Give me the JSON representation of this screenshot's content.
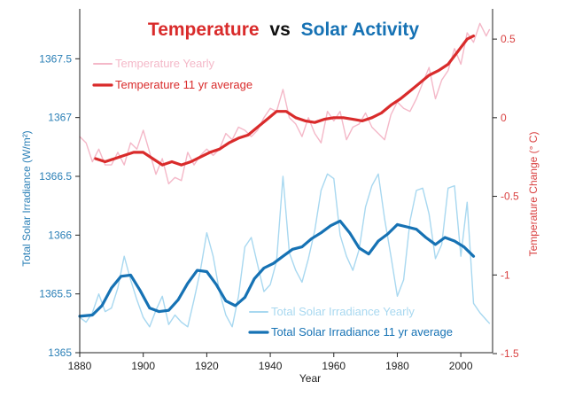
{
  "colors": {
    "temp": "#d92b2b",
    "temp_yearly": "#f4b8c8",
    "solar": "#1672b4",
    "solar_yearly": "#a8d8f0",
    "left_axis": "#2a7fb6",
    "right_axis": "#d94040",
    "axis_line": "#222222",
    "title_vs": "#111111"
  },
  "chart_data": {
    "type": "line",
    "title": {
      "part1": "Temperature",
      "part2": "vs",
      "part3": "Solar Activity"
    },
    "xlabel": "Year",
    "ylabel_left": "Total Solar Irradiance (W/m²)",
    "ylabel_right": "Temperature Change (° C)",
    "xlim": [
      1880,
      2010
    ],
    "ylim_left": [
      1365,
      1368
    ],
    "ylim_right": [
      -1.5,
      0.65
    ],
    "x_ticks": [
      1880,
      1900,
      1920,
      1940,
      1960,
      1980,
      2000
    ],
    "y_left_ticks": [
      1365,
      1365.5,
      1366,
      1366.5,
      1367,
      1367.5
    ],
    "y_right_ticks": [
      -1.5,
      -1,
      -0.5,
      0,
      0.5
    ],
    "legend_top": [
      "Temperature Yearly",
      "Temperature 11 yr average"
    ],
    "legend_bottom": [
      "Total Solar Irradiance Yearly",
      "Total Solar Irradiance 11 yr average"
    ],
    "series": [
      {
        "name": "Temperature Yearly",
        "axis": "right",
        "x": [
          1880,
          1882,
          1884,
          1886,
          1888,
          1890,
          1892,
          1894,
          1896,
          1898,
          1900,
          1902,
          1904,
          1906,
          1908,
          1910,
          1912,
          1914,
          1916,
          1918,
          1920,
          1922,
          1924,
          1926,
          1928,
          1930,
          1932,
          1934,
          1936,
          1938,
          1940,
          1942,
          1944,
          1946,
          1948,
          1950,
          1952,
          1954,
          1956,
          1958,
          1960,
          1962,
          1964,
          1966,
          1968,
          1970,
          1972,
          1974,
          1976,
          1978,
          1980,
          1982,
          1984,
          1986,
          1988,
          1990,
          1992,
          1994,
          1996,
          1998,
          2000,
          2002,
          2004,
          2006,
          2008,
          2009
        ],
        "y": [
          -0.12,
          -0.16,
          -0.28,
          -0.2,
          -0.3,
          -0.3,
          -0.22,
          -0.3,
          -0.16,
          -0.2,
          -0.08,
          -0.22,
          -0.36,
          -0.26,
          -0.42,
          -0.38,
          -0.4,
          -0.22,
          -0.3,
          -0.24,
          -0.2,
          -0.24,
          -0.2,
          -0.1,
          -0.14,
          -0.06,
          -0.08,
          -0.12,
          -0.08,
          0,
          0.06,
          0.04,
          0.18,
          0,
          -0.04,
          -0.12,
          0,
          -0.1,
          -0.16,
          0.04,
          -0.02,
          0.04,
          -0.14,
          -0.06,
          -0.04,
          0.03,
          -0.06,
          -0.1,
          -0.14,
          0.02,
          0.1,
          0.06,
          0.04,
          0.12,
          0.22,
          0.32,
          0.12,
          0.24,
          0.3,
          0.44,
          0.34,
          0.54,
          0.48,
          0.6,
          0.52,
          0.56
        ]
      },
      {
        "name": "Temperature 11 yr average",
        "axis": "right",
        "x": [
          1885,
          1888,
          1891,
          1894,
          1897,
          1900,
          1903,
          1906,
          1909,
          1912,
          1915,
          1918,
          1921,
          1924,
          1927,
          1930,
          1933,
          1936,
          1939,
          1942,
          1945,
          1948,
          1951,
          1954,
          1957,
          1960,
          1963,
          1966,
          1969,
          1972,
          1975,
          1978,
          1981,
          1984,
          1987,
          1990,
          1993,
          1996,
          1999,
          2002,
          2004
        ],
        "y": [
          -0.26,
          -0.28,
          -0.26,
          -0.24,
          -0.22,
          -0.22,
          -0.26,
          -0.3,
          -0.28,
          -0.3,
          -0.28,
          -0.25,
          -0.22,
          -0.2,
          -0.16,
          -0.13,
          -0.11,
          -0.06,
          -0.01,
          0.04,
          0.04,
          0,
          -0.02,
          -0.03,
          -0.01,
          0,
          0,
          -0.01,
          -0.02,
          0,
          0.03,
          0.08,
          0.12,
          0.17,
          0.22,
          0.27,
          0.3,
          0.34,
          0.42,
          0.5,
          0.52
        ]
      },
      {
        "name": "Total Solar Irradiance Yearly",
        "axis": "left",
        "x": [
          1880,
          1882,
          1884,
          1886,
          1888,
          1890,
          1892,
          1894,
          1896,
          1898,
          1900,
          1902,
          1904,
          1906,
          1908,
          1910,
          1912,
          1914,
          1916,
          1918,
          1920,
          1922,
          1924,
          1926,
          1928,
          1930,
          1932,
          1934,
          1936,
          1938,
          1940,
          1942,
          1944,
          1946,
          1948,
          1950,
          1952,
          1954,
          1956,
          1958,
          1960,
          1962,
          1964,
          1966,
          1968,
          1970,
          1972,
          1974,
          1976,
          1978,
          1980,
          1982,
          1984,
          1986,
          1988,
          1990,
          1992,
          1994,
          1996,
          1998,
          2000,
          2002,
          2004,
          2006,
          2008,
          2009
        ],
        "y": [
          1365.3,
          1365.26,
          1365.34,
          1365.5,
          1365.35,
          1365.38,
          1365.55,
          1365.82,
          1365.62,
          1365.45,
          1365.3,
          1365.22,
          1365.36,
          1365.48,
          1365.24,
          1365.32,
          1365.26,
          1365.22,
          1365.45,
          1365.7,
          1366.02,
          1365.82,
          1365.52,
          1365.32,
          1365.22,
          1365.48,
          1365.9,
          1365.98,
          1365.75,
          1365.52,
          1365.58,
          1365.78,
          1366.5,
          1365.85,
          1365.7,
          1365.6,
          1365.8,
          1366.04,
          1366.38,
          1366.52,
          1366.48,
          1366.0,
          1365.82,
          1365.7,
          1365.88,
          1366.24,
          1366.42,
          1366.52,
          1366.14,
          1365.82,
          1365.48,
          1365.62,
          1366.12,
          1366.38,
          1366.4,
          1366.18,
          1365.8,
          1365.92,
          1366.4,
          1366.42,
          1365.82,
          1366.28,
          1365.42,
          1365.34,
          1365.28,
          1365.25
        ]
      },
      {
        "name": "Total Solar Irradiance 11 yr average",
        "axis": "left",
        "x": [
          1880,
          1884,
          1887,
          1890,
          1893,
          1896,
          1899,
          1902,
          1905,
          1908,
          1911,
          1914,
          1917,
          1920,
          1923,
          1926,
          1929,
          1932,
          1935,
          1938,
          1941,
          1944,
          1947,
          1950,
          1953,
          1956,
          1959,
          1962,
          1965,
          1968,
          1971,
          1974,
          1977,
          1980,
          1983,
          1986,
          1989,
          1992,
          1995,
          1998,
          2001,
          2004
        ],
        "y": [
          1365.31,
          1365.32,
          1365.4,
          1365.55,
          1365.65,
          1365.66,
          1365.53,
          1365.38,
          1365.35,
          1365.36,
          1365.45,
          1365.59,
          1365.7,
          1365.69,
          1365.58,
          1365.44,
          1365.4,
          1365.47,
          1365.63,
          1365.72,
          1365.76,
          1365.82,
          1365.88,
          1365.9,
          1365.97,
          1366.02,
          1366.08,
          1366.12,
          1366.02,
          1365.89,
          1365.84,
          1365.95,
          1366.01,
          1366.09,
          1366.07,
          1366.05,
          1365.98,
          1365.92,
          1365.98,
          1365.95,
          1365.9,
          1365.82
        ]
      }
    ]
  }
}
